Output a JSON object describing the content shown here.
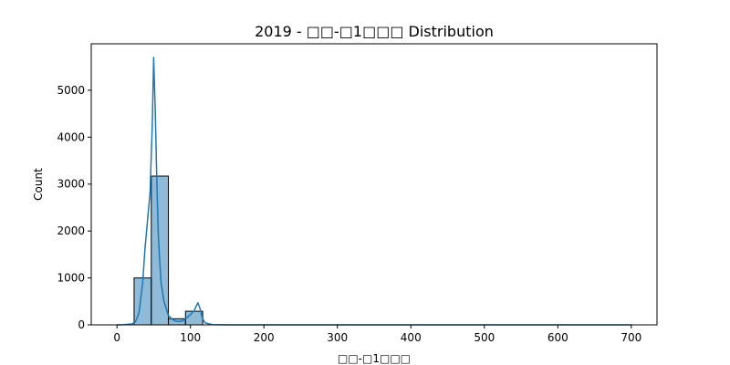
{
  "chart_data": {
    "type": "bar",
    "title": "2019 - □□-□1□□□ Distribution",
    "xlabel": "□□-□1□□□",
    "ylabel": "Count",
    "xlim": [
      -35,
      735
    ],
    "ylim": [
      0,
      5990
    ],
    "xticks": [
      0,
      100,
      200,
      300,
      400,
      500,
      600,
      700
    ],
    "yticks": [
      0,
      1000,
      2000,
      3000,
      4000,
      5000
    ],
    "grid": false,
    "bar_color": "#1f77b4",
    "bar_opacity": 0.5,
    "bar_edge_color": "#000000",
    "line_color": "#1f77b4",
    "bins": [
      {
        "x0": 0,
        "x1": 23.3,
        "count": 0
      },
      {
        "x0": 23.3,
        "x1": 46.7,
        "count": 1000
      },
      {
        "x0": 46.7,
        "x1": 70,
        "count": 3170
      },
      {
        "x0": 70,
        "x1": 93.3,
        "count": 130
      },
      {
        "x0": 93.3,
        "x1": 116.7,
        "count": 290
      }
    ],
    "kde": {
      "x": [
        0,
        10,
        20,
        25,
        30,
        35,
        38,
        42,
        45,
        48,
        50,
        52,
        54,
        56,
        58,
        60,
        64,
        70,
        75,
        80,
        85,
        90,
        95,
        100,
        105,
        110,
        113,
        116,
        120,
        130,
        150,
        200,
        300,
        400,
        500,
        600,
        700
      ],
      "y": [
        0,
        5,
        20,
        60,
        250,
        900,
        1600,
        2300,
        2800,
        4200,
        5700,
        4600,
        3200,
        2000,
        1400,
        900,
        500,
        200,
        120,
        80,
        70,
        90,
        150,
        220,
        300,
        470,
        350,
        150,
        40,
        5,
        0,
        0,
        0,
        0,
        0,
        0,
        0
      ]
    }
  }
}
